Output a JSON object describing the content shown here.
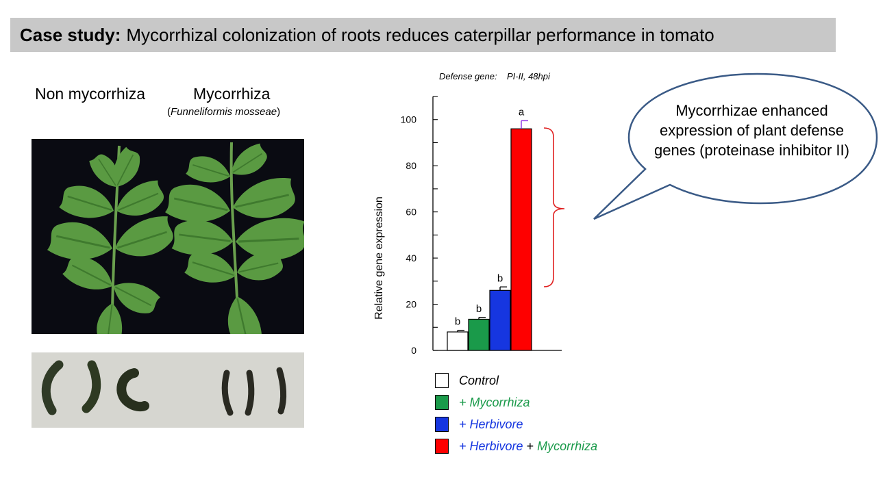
{
  "title": {
    "bold": "Case study:",
    "rest": "Mycorrhizal colonization of roots reduces caterpillar performance in tomato"
  },
  "labels": {
    "non_mycorrhiza": "Non mycorrhiza",
    "mycorrhiza": "Mycorrhiza",
    "species_open": "(",
    "species": "Funneliformis mosseae",
    "species_close": ")"
  },
  "callout": "Mycorrhizae enhanced expression of plant defense genes (proteinase inhibitor II)",
  "legend": {
    "control": "Control",
    "plus": "+",
    "mycorrhiza": "Mycorrhiza",
    "herbivore": "Herbivore"
  },
  "colors": {
    "control": "#ffffff",
    "mycorrhiza": "#1a9a4a",
    "herbivore": "#1636e0",
    "herbivore_mycorrhiza": "#fe0000",
    "bracket": "#e02020",
    "bubble_stroke": "#3a5a86"
  },
  "chart_data": {
    "type": "bar",
    "title": "Defense gene:    PI-II, 48hpi",
    "xlabel": "",
    "ylabel": "Relative gene expression",
    "ylim": [
      0,
      110
    ],
    "yticks": [
      0,
      20,
      40,
      60,
      80,
      100
    ],
    "categories": [
      "Control",
      "+ Mycorrhiza",
      "+ Herbivore",
      "+ Herbivore + Mycorrhiza"
    ],
    "values": [
      8,
      13.5,
      26,
      96
    ],
    "errors": [
      0.7,
      0.8,
      1.5,
      3.5
    ],
    "significance": [
      "b",
      "b",
      "b",
      "a"
    ],
    "colors": [
      "#ffffff",
      "#1a9a4a",
      "#1636e0",
      "#fe0000"
    ]
  }
}
